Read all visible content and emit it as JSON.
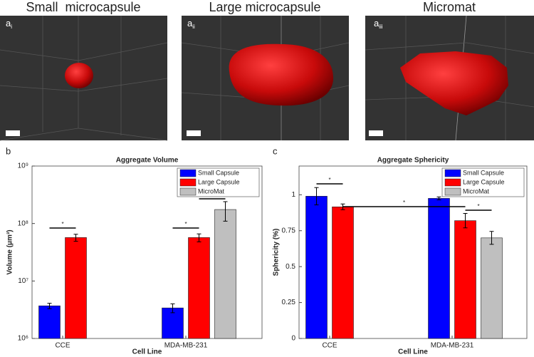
{
  "panels": [
    {
      "title": "Small  microcapsule",
      "label": {
        "letter": "a",
        "sub": "i"
      }
    },
    {
      "title": "Large microcapsule",
      "label": {
        "letter": "a",
        "sub": "ii"
      }
    },
    {
      "title": "Micromat",
      "label": {
        "letter": "a",
        "sub": "iii"
      }
    }
  ],
  "chart_data": [
    {
      "type": "bar",
      "panel": "b",
      "title": "Aggregate Volume",
      "x_label": "Cell Line",
      "y_label": "Volume (μm³)",
      "categories": [
        "CCE",
        "MDA-MB-231"
      ],
      "log_scale": true,
      "ylim": [
        1000000,
        1000000000
      ],
      "yticks": [
        {
          "value": 1000000,
          "label": "10⁶"
        },
        {
          "value": 10000000,
          "label": "10⁷"
        },
        {
          "value": 100000000,
          "label": "10⁸"
        },
        {
          "value": 1000000000,
          "label": "10⁹"
        }
      ],
      "legend": "upper right",
      "series": [
        {
          "name": "Small Capsule",
          "color": "#0000ff",
          "values": [
            3700000,
            3400000
          ],
          "errors": [
            400000,
            600000
          ]
        },
        {
          "name": "Large Capsule",
          "color": "#ff0000",
          "values": [
            57000000,
            57000000
          ],
          "errors": [
            8000000,
            9000000
          ]
        },
        {
          "name": "MicroMat",
          "color": "#bfbfbf",
          "values": [
            null,
            175000000
          ],
          "errors": [
            null,
            65000000
          ]
        }
      ],
      "significance": [
        "*",
        "*",
        "*"
      ]
    },
    {
      "type": "bar",
      "panel": "c",
      "title": "Aggregate Sphericity",
      "x_label": "Cell Line",
      "y_label": "Sphericity (%)",
      "categories": [
        "CCE",
        "MDA-MB-231"
      ],
      "log_scale": false,
      "ylim": [
        0,
        1.2
      ],
      "yticks": [
        0,
        0.25,
        0.5,
        0.75,
        1
      ],
      "legend": "upper right",
      "series": [
        {
          "name": "Small Capsule",
          "color": "#0000ff",
          "values": [
            0.99,
            0.975
          ],
          "errors": [
            0.06,
            0.01
          ]
        },
        {
          "name": "Large Capsule",
          "color": "#ff0000",
          "values": [
            0.916,
            0.82
          ],
          "errors": [
            0.02,
            0.05
          ]
        },
        {
          "name": "MicroMat",
          "color": "#bfbfbf",
          "values": [
            null,
            0.7
          ],
          "errors": [
            null,
            0.045
          ]
        }
      ],
      "significance": [
        "*",
        "*",
        "*"
      ]
    }
  ]
}
